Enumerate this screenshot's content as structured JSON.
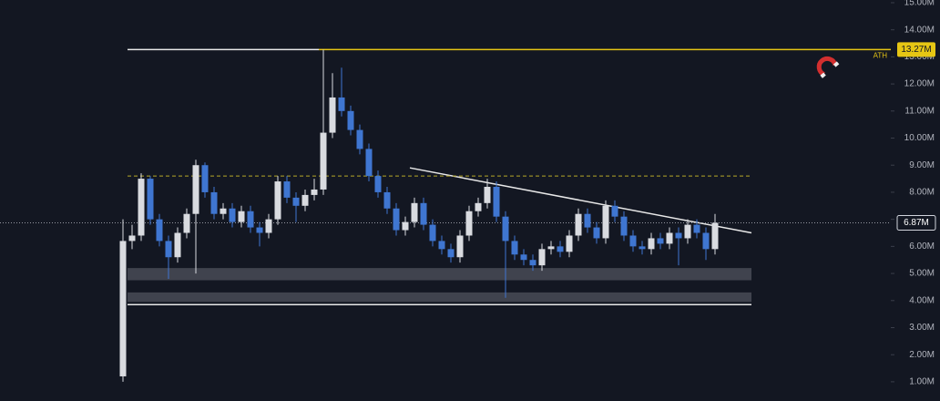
{
  "chart_data": {
    "type": "candlestick",
    "open": [
      1.2,
      6.2,
      6.4,
      8.5,
      7.0,
      6.2,
      5.6,
      6.5,
      7.2,
      9.0,
      8.0,
      7.2,
      7.4,
      6.9,
      7.3,
      6.7,
      6.5,
      7.0,
      8.4,
      7.8,
      7.5,
      7.9,
      8.1,
      10.2,
      11.5,
      11.0,
      10.3,
      9.6,
      8.6,
      8.0,
      7.4,
      6.6,
      6.9,
      7.6,
      6.8,
      6.2,
      5.9,
      5.6,
      6.4,
      7.3,
      7.6,
      8.2,
      7.1,
      6.2,
      5.7,
      5.5,
      5.3,
      5.9,
      6.0,
      5.8,
      6.4,
      7.2,
      6.7,
      6.3,
      7.5,
      7.1,
      6.4,
      6.0,
      5.9,
      6.3,
      6.1,
      6.5,
      6.3,
      6.8,
      6.5,
      5.9
    ],
    "high": [
      7.0,
      6.8,
      8.7,
      8.6,
      7.2,
      6.4,
      6.7,
      7.4,
      9.2,
      9.1,
      8.2,
      7.6,
      7.6,
      7.5,
      7.5,
      6.9,
      7.2,
      8.6,
      8.6,
      8.0,
      8.1,
      8.5,
      13.27,
      12.4,
      12.6,
      11.2,
      10.5,
      9.8,
      8.8,
      8.2,
      7.6,
      7.1,
      7.8,
      7.8,
      7.0,
      6.4,
      6.1,
      6.6,
      7.5,
      7.8,
      8.5,
      8.4,
      7.3,
      6.4,
      5.9,
      5.7,
      6.1,
      6.2,
      6.2,
      6.6,
      7.4,
      7.4,
      6.9,
      7.7,
      7.7,
      7.3,
      6.6,
      6.2,
      6.5,
      6.5,
      6.7,
      6.7,
      7.0,
      7.0,
      6.7,
      7.2
    ],
    "low": [
      1.0,
      5.9,
      6.2,
      6.8,
      6.0,
      4.8,
      5.4,
      6.3,
      5.0,
      7.8,
      7.0,
      7.0,
      6.7,
      6.7,
      6.5,
      6.0,
      6.3,
      6.8,
      7.6,
      6.9,
      7.3,
      7.7,
      7.9,
      10.0,
      10.8,
      10.1,
      9.4,
      8.4,
      7.8,
      7.2,
      6.4,
      6.4,
      6.7,
      6.6,
      6.0,
      5.7,
      5.4,
      5.4,
      6.2,
      7.1,
      7.4,
      6.9,
      4.1,
      5.5,
      5.3,
      5.1,
      5.1,
      5.7,
      5.6,
      5.6,
      6.2,
      6.5,
      6.1,
      6.1,
      6.9,
      6.2,
      5.8,
      5.7,
      5.7,
      5.9,
      5.9,
      5.3,
      6.1,
      6.3,
      5.5,
      5.7
    ],
    "close": [
      6.2,
      6.4,
      8.5,
      7.0,
      6.2,
      5.6,
      6.5,
      7.2,
      9.0,
      8.0,
      7.2,
      7.4,
      6.9,
      7.3,
      6.7,
      6.5,
      7.0,
      8.4,
      7.8,
      7.5,
      7.9,
      8.1,
      10.2,
      11.5,
      11.0,
      10.3,
      9.6,
      8.6,
      8.0,
      7.4,
      6.6,
      6.9,
      7.6,
      6.8,
      6.2,
      5.9,
      5.6,
      6.4,
      7.3,
      7.6,
      8.2,
      7.1,
      6.2,
      5.7,
      5.5,
      5.3,
      5.9,
      6.0,
      5.8,
      6.4,
      7.2,
      6.7,
      6.3,
      7.5,
      7.1,
      6.4,
      6.0,
      5.9,
      6.3,
      6.1,
      6.5,
      6.3,
      6.8,
      6.5,
      5.9,
      6.87
    ],
    "up_color": "#d9dbe0",
    "down_color": "#3f76d1",
    "ylim": [
      0.29,
      15.1
    ],
    "yticks": [
      {
        "value": 1,
        "label": "1.00M"
      },
      {
        "value": 2,
        "label": "2.00M"
      },
      {
        "value": 3,
        "label": "3.00M"
      },
      {
        "value": 4,
        "label": "4.00M"
      },
      {
        "value": 5,
        "label": "5.00M"
      },
      {
        "value": 6,
        "label": "6.00M"
      },
      {
        "value": 7,
        "label": "7.00M"
      },
      {
        "value": 8,
        "label": "8.00M"
      },
      {
        "value": 9,
        "label": "9.00M"
      },
      {
        "value": 10,
        "label": "10.00M"
      },
      {
        "value": 11,
        "label": "11.00M"
      },
      {
        "value": 12,
        "label": "12.00M"
      },
      {
        "value": 13,
        "label": "13.00M"
      },
      {
        "value": 14,
        "label": "14.00M"
      },
      {
        "value": 15,
        "label": "15.00M"
      }
    ],
    "levels": [
      {
        "value": 13.27,
        "label": "13.27M",
        "note": "ATH",
        "style": "solid",
        "color": "#e6c614"
      },
      {
        "value": 8.6,
        "style": "dashed",
        "color": "#b8a92a"
      },
      {
        "value": 6.87,
        "label": "6.87M",
        "style": "dotted",
        "color": "#9598a1"
      }
    ],
    "zones": [
      {
        "low": 4.75,
        "high": 5.2
      },
      {
        "low": 3.95,
        "high": 4.3
      }
    ],
    "lines": [
      {
        "x": [
          0.5,
          21.5
        ],
        "y": [
          13.27,
          13.27
        ]
      },
      {
        "x": [
          0.5,
          69
        ],
        "y": [
          3.85,
          3.85
        ]
      },
      {
        "x": [
          31.5,
          69
        ],
        "y": [
          8.9,
          6.5
        ]
      }
    ]
  }
}
